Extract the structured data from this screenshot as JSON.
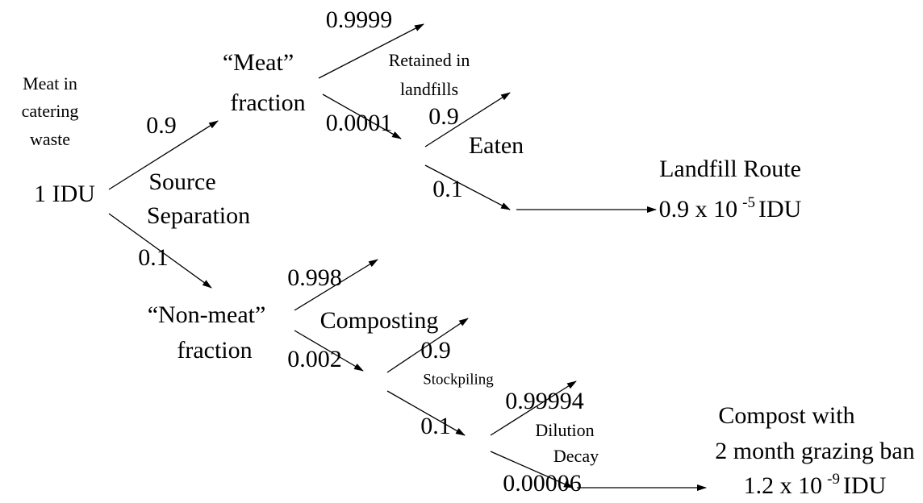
{
  "source": {
    "lines": [
      "Meat in",
      "catering",
      "waste"
    ],
    "dose": "1 IDU"
  },
  "source_separation": {
    "lines": [
      "Source",
      "Separation"
    ],
    "meat_probability": "0.9",
    "non_meat_probability": "0.1"
  },
  "meat_fraction": {
    "lines": [
      "“Meat”",
      "fraction"
    ],
    "retained_probability": "0.9999",
    "escape_probability": "0.0001"
  },
  "landfill": {
    "lines": [
      "Retained in",
      "landfills"
    ]
  },
  "eaten": {
    "label": "Eaten",
    "yes_probability": "0.9",
    "no_probability": "0.1"
  },
  "landfill_route": {
    "title": "Landfill Route",
    "result": {
      "base": "0.9 x 10",
      "exponent": "-5",
      "unit": "IDU"
    }
  },
  "non_meat_fraction": {
    "lines": [
      "“Non-meat”",
      "fraction"
    ],
    "retained_probability": "0.998",
    "escape_probability": "0.002"
  },
  "composting": {
    "label": "Composting"
  },
  "stockpiling": {
    "label": "Stockpiling",
    "yes_probability": "0.9",
    "no_probability": "0.1"
  },
  "dilution_decay": {
    "lines": [
      "Dilution",
      "Decay"
    ],
    "yes_probability": "0.99994",
    "no_probability": "0.00006"
  },
  "compost_route": {
    "lines": [
      "Compost with",
      "2 month grazing ban"
    ],
    "result": {
      "base": "1.2 x 10",
      "exponent": "-9",
      "unit": "IDU"
    }
  }
}
